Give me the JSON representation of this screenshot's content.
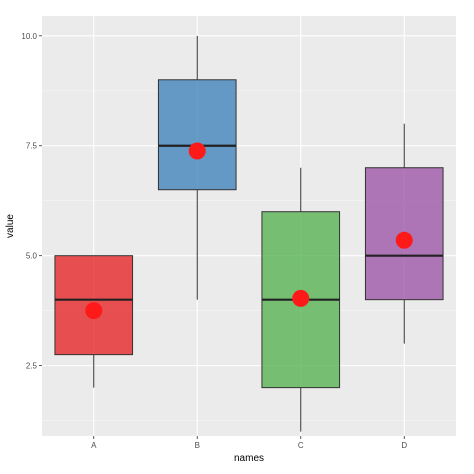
{
  "chart_data": {
    "type": "boxplot",
    "xlabel": "names",
    "ylabel": "value",
    "ylim": [
      0.9,
      10.45
    ],
    "yticks": [
      2.5,
      5.0,
      7.5,
      10.0
    ],
    "ytick_labels": [
      "2.5",
      "5.0",
      "7.5",
      "10.0"
    ],
    "categories": [
      "A",
      "B",
      "C",
      "D"
    ],
    "boxes": [
      {
        "name": "A",
        "min": 2.0,
        "q1": 2.75,
        "median": 4.0,
        "q3": 5.0,
        "max": 5.0,
        "mean": 3.75,
        "color": "#e41a1c"
      },
      {
        "name": "B",
        "min": 4.0,
        "q1": 6.5,
        "median": 7.5,
        "q3": 9.0,
        "max": 10.0,
        "mean": 7.38,
        "color": "#377eb8"
      },
      {
        "name": "C",
        "min": 1.0,
        "q1": 2.0,
        "median": 4.0,
        "q3": 6.0,
        "max": 7.0,
        "mean": 4.03,
        "color": "#4daf4a"
      },
      {
        "name": "D",
        "min": 3.0,
        "q1": 4.0,
        "median": 5.0,
        "q3": 7.0,
        "max": 8.0,
        "mean": 5.35,
        "color": "#984ea3"
      }
    ],
    "mean_marker_color": "#ff1a1a",
    "panel_background": "#ebebeb",
    "grid": true
  }
}
